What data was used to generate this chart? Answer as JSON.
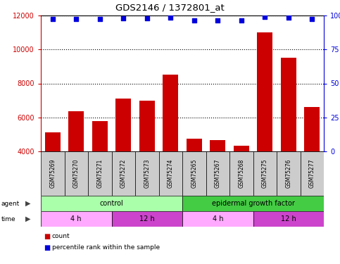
{
  "title": "GDS2146 / 1372801_at",
  "samples": [
    "GSM75269",
    "GSM75270",
    "GSM75271",
    "GSM75272",
    "GSM75273",
    "GSM75274",
    "GSM75265",
    "GSM75267",
    "GSM75268",
    "GSM75275",
    "GSM75276",
    "GSM75277"
  ],
  "counts": [
    5100,
    6350,
    5800,
    7100,
    7000,
    8500,
    4750,
    4650,
    4350,
    11000,
    9500,
    6600
  ],
  "percentiles": [
    97.5,
    97.5,
    97.5,
    98.0,
    98.0,
    98.5,
    96.5,
    96.5,
    96.5,
    99.0,
    98.5,
    97.5
  ],
  "bar_color": "#cc0000",
  "dot_color": "#0000dd",
  "ylim_left": [
    4000,
    12000
  ],
  "yticks_left": [
    4000,
    6000,
    8000,
    10000,
    12000
  ],
  "ylim_right": [
    0,
    100
  ],
  "yticks_right": [
    0,
    25,
    50,
    75,
    100
  ],
  "agent_groups": [
    {
      "label": "control",
      "start": 0,
      "end": 6,
      "color": "#aaffaa"
    },
    {
      "label": "epidermal growth factor",
      "start": 6,
      "end": 12,
      "color": "#44cc44"
    }
  ],
  "time_groups": [
    {
      "label": "4 h",
      "start": 0,
      "end": 3,
      "color": "#ffaaff"
    },
    {
      "label": "12 h",
      "start": 3,
      "end": 6,
      "color": "#cc44cc"
    },
    {
      "label": "4 h",
      "start": 6,
      "end": 9,
      "color": "#ffaaff"
    },
    {
      "label": "12 h",
      "start": 9,
      "end": 12,
      "color": "#cc44cc"
    }
  ],
  "legend_count_color": "#cc0000",
  "legend_pct_color": "#0000dd",
  "left_tick_color": "#cc0000",
  "right_tick_color": "#0000dd",
  "fig_width": 4.83,
  "fig_height": 3.75,
  "dpi": 100
}
